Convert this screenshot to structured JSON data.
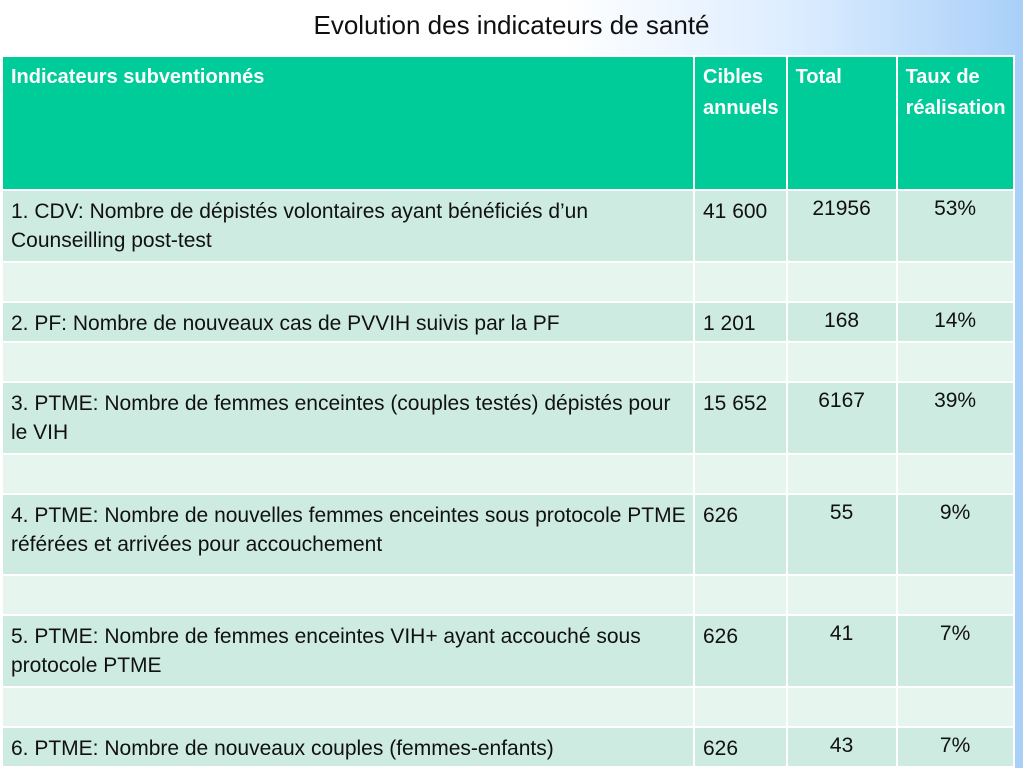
{
  "title": "Evolution des indicateurs de santé",
  "table": {
    "headers": [
      "Indicateurs subventionnés",
      "Cibles annuels",
      "Total",
      "Taux de réalisation"
    ],
    "rows": [
      {
        "indicator": "1. CDV: Nombre de dépistés volontaires ayant bénéficiés d’un Counseilling post-test",
        "target": "41 600",
        "total": "21956",
        "rate": "53%"
      },
      {
        "indicator": "2. PF: Nombre de nouveaux cas de PVVIH suivis par la PF",
        "target": "1 201",
        "total": "168",
        "rate": "14%"
      },
      {
        "indicator": "3. PTME: Nombre de femmes enceintes (couples testés) dépistés pour le VIH",
        "target": "15 652",
        "total": "6167",
        "rate": "39%"
      },
      {
        "indicator": "4. PTME: Nombre de nouvelles femmes enceintes sous protocole PTME référées  et arrivées pour accouchement",
        "target": "626",
        "total": "55",
        "rate": "9%"
      },
      {
        "indicator": "5. PTME: Nombre de femmes enceintes VIH+ ayant accouché sous protocole PTME",
        "target": "626",
        "total": "41",
        "rate": "7%"
      },
      {
        "indicator": "6. PTME: Nombre de nouveaux couples (femmes-enfants)",
        "target": "626",
        "total": "43",
        "rate": "7%"
      }
    ]
  }
}
